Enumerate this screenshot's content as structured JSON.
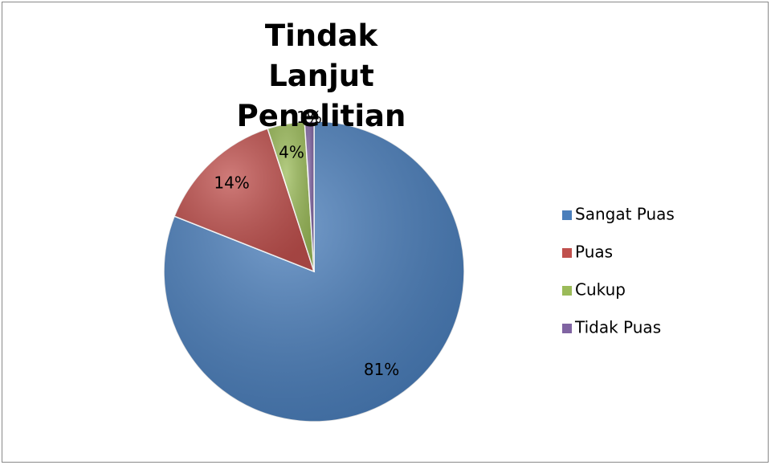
{
  "chart_data": {
    "type": "pie",
    "title": "Tindak Lanjut Penelitian",
    "categories": [
      "Sangat Puas",
      "Puas",
      "Cukup",
      "Tidak Puas"
    ],
    "values": [
      81,
      14,
      4,
      1
    ],
    "value_labels": [
      "81%",
      "14%",
      "4%",
      "1%"
    ],
    "colors": [
      "#4a7ebb",
      "#c0504d",
      "#9bbb59",
      "#8064a2"
    ],
    "legend": "right"
  }
}
